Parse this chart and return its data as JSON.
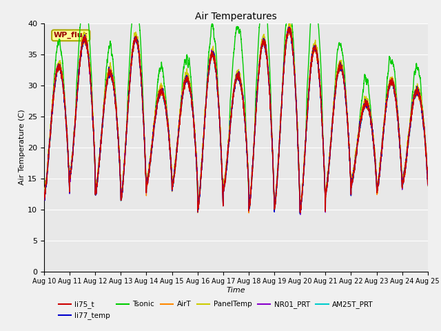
{
  "title": "Air Temperatures",
  "xlabel": "Time",
  "ylabel": "Air Temperature (C)",
  "ylim": [
    0,
    40
  ],
  "yticks": [
    0,
    5,
    10,
    15,
    20,
    25,
    30,
    35,
    40
  ],
  "xtick_labels": [
    "Aug 10",
    "Aug 11",
    "Aug 12",
    "Aug 13",
    "Aug 14",
    "Aug 15",
    "Aug 16",
    "Aug 17",
    "Aug 18",
    "Aug 19",
    "Aug 20",
    "Aug 21",
    "Aug 22",
    "Aug 23",
    "Aug 24",
    "Aug 25"
  ],
  "series_colors": {
    "li75_t": "#cc0000",
    "li77_temp": "#0000cc",
    "Tsonic": "#00cc00",
    "AirT": "#ff8800",
    "PanelTemp": "#cccc00",
    "NR01_PRT": "#8800cc",
    "AM25T_PRT": "#00cccc"
  },
  "legend_label_WP_flux": "WP_flux",
  "wp_flux_box_color": "#ffff99",
  "wp_flux_text_color": "#990000",
  "background_color": "#e8e8e8",
  "figure_bg": "#f0f0f0",
  "grid_color": "#ffffff",
  "n_points": 4320,
  "days": 15
}
